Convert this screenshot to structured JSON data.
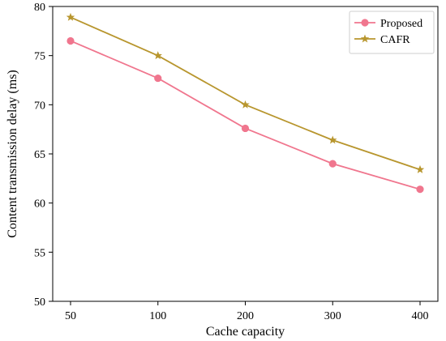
{
  "chart_data": {
    "type": "line",
    "title": "",
    "xlabel": "Cache capacity",
    "ylabel": "Content transmission delay (ms)",
    "categories": [
      "50",
      "100",
      "200",
      "300",
      "400"
    ],
    "ylim": [
      50,
      80
    ],
    "yticks": [
      50,
      55,
      60,
      65,
      70,
      75,
      80
    ],
    "grid": false,
    "legend_position": "top-right",
    "series": [
      {
        "name": "Proposed",
        "values": [
          76.5,
          72.7,
          67.6,
          64.0,
          61.4
        ],
        "color": "#f0768e",
        "marker": "circle"
      },
      {
        "name": "CAFR",
        "values": [
          78.9,
          75.0,
          70.0,
          66.4,
          63.4
        ],
        "color": "#b8962e",
        "marker": "star"
      }
    ]
  }
}
